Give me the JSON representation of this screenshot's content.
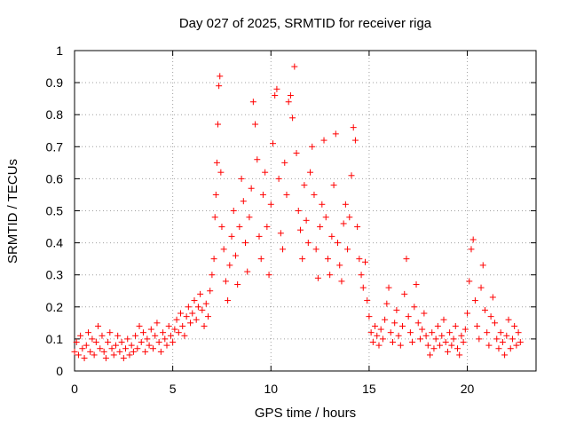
{
  "chart_data": {
    "type": "scatter",
    "title": "Day 027 of 2025, SRMTID for receiver riga",
    "xlabel": "GPS time / hours",
    "ylabel": "SRMTID / TECUs",
    "xlim": [
      0,
      23.5
    ],
    "ylim": [
      0,
      1
    ],
    "grid": true,
    "marker": "+",
    "color": "#ff0000",
    "x_ticks": [
      0,
      5,
      10,
      15,
      20
    ],
    "x_tick_labels": [
      "0",
      "5",
      "10",
      "15",
      "20"
    ],
    "y_ticks": [
      0,
      0.1,
      0.2,
      0.3,
      0.4,
      0.5,
      0.6,
      0.7,
      0.8,
      0.9,
      1
    ],
    "y_tick_labels": [
      "0",
      "0.1",
      "0.2",
      "0.3",
      "0.4",
      "0.5",
      "0.6",
      "0.7",
      "0.8",
      "0.9",
      "1"
    ],
    "series": [
      {
        "name": "SRMTID",
        "points": [
          [
            0.0,
            0.06
          ],
          [
            0.1,
            0.09
          ],
          [
            0.2,
            0.05
          ],
          [
            0.3,
            0.11
          ],
          [
            0.4,
            0.07
          ],
          [
            0.5,
            0.04
          ],
          [
            0.6,
            0.08
          ],
          [
            0.7,
            0.12
          ],
          [
            0.8,
            0.06
          ],
          [
            0.9,
            0.1
          ],
          [
            1.0,
            0.05
          ],
          [
            1.1,
            0.09
          ],
          [
            1.2,
            0.14
          ],
          [
            1.3,
            0.07
          ],
          [
            1.4,
            0.11
          ],
          [
            1.5,
            0.06
          ],
          [
            1.6,
            0.04
          ],
          [
            1.7,
            0.09
          ],
          [
            1.8,
            0.12
          ],
          [
            1.9,
            0.07
          ],
          [
            2.0,
            0.05
          ],
          [
            2.1,
            0.08
          ],
          [
            2.2,
            0.11
          ],
          [
            2.3,
            0.06
          ],
          [
            2.4,
            0.09
          ],
          [
            2.5,
            0.04
          ],
          [
            2.6,
            0.07
          ],
          [
            2.7,
            0.1
          ],
          [
            2.8,
            0.05
          ],
          [
            2.9,
            0.08
          ],
          [
            3.0,
            0.06
          ],
          [
            3.1,
            0.11
          ],
          [
            3.2,
            0.07
          ],
          [
            3.3,
            0.14
          ],
          [
            3.4,
            0.09
          ],
          [
            3.5,
            0.12
          ],
          [
            3.6,
            0.06
          ],
          [
            3.7,
            0.1
          ],
          [
            3.8,
            0.08
          ],
          [
            3.9,
            0.13
          ],
          [
            4.0,
            0.07
          ],
          [
            4.1,
            0.11
          ],
          [
            4.2,
            0.15
          ],
          [
            4.3,
            0.09
          ],
          [
            4.4,
            0.06
          ],
          [
            4.5,
            0.12
          ],
          [
            4.6,
            0.1
          ],
          [
            4.7,
            0.08
          ],
          [
            4.8,
            0.14
          ],
          [
            4.9,
            0.11
          ],
          [
            5.0,
            0.09
          ],
          [
            5.1,
            0.13
          ],
          [
            5.2,
            0.16
          ],
          [
            5.3,
            0.12
          ],
          [
            5.4,
            0.18
          ],
          [
            5.5,
            0.14
          ],
          [
            5.6,
            0.11
          ],
          [
            5.7,
            0.17
          ],
          [
            5.8,
            0.2
          ],
          [
            5.9,
            0.15
          ],
          [
            6.0,
            0.18
          ],
          [
            6.1,
            0.22
          ],
          [
            6.2,
            0.16
          ],
          [
            6.3,
            0.2
          ],
          [
            6.4,
            0.24
          ],
          [
            6.5,
            0.19
          ],
          [
            6.6,
            0.14
          ],
          [
            6.7,
            0.21
          ],
          [
            6.8,
            0.17
          ],
          [
            6.9,
            0.25
          ],
          [
            7.0,
            0.3
          ],
          [
            7.1,
            0.35
          ],
          [
            7.15,
            0.48
          ],
          [
            7.2,
            0.55
          ],
          [
            7.25,
            0.65
          ],
          [
            7.3,
            0.77
          ],
          [
            7.35,
            0.89
          ],
          [
            7.4,
            0.92
          ],
          [
            7.45,
            0.62
          ],
          [
            7.5,
            0.45
          ],
          [
            7.6,
            0.38
          ],
          [
            7.7,
            0.28
          ],
          [
            7.8,
            0.22
          ],
          [
            7.9,
            0.33
          ],
          [
            8.0,
            0.42
          ],
          [
            8.1,
            0.5
          ],
          [
            8.2,
            0.36
          ],
          [
            8.3,
            0.27
          ],
          [
            8.4,
            0.45
          ],
          [
            8.5,
            0.6
          ],
          [
            8.6,
            0.53
          ],
          [
            8.7,
            0.4
          ],
          [
            8.8,
            0.31
          ],
          [
            8.9,
            0.48
          ],
          [
            9.0,
            0.57
          ],
          [
            9.1,
            0.84
          ],
          [
            9.2,
            0.77
          ],
          [
            9.3,
            0.66
          ],
          [
            9.4,
            0.42
          ],
          [
            9.5,
            0.35
          ],
          [
            9.6,
            0.55
          ],
          [
            9.7,
            0.62
          ],
          [
            9.8,
            0.45
          ],
          [
            9.9,
            0.3
          ],
          [
            10.0,
            0.52
          ],
          [
            10.1,
            0.71
          ],
          [
            10.2,
            0.86
          ],
          [
            10.3,
            0.88
          ],
          [
            10.4,
            0.6
          ],
          [
            10.5,
            0.43
          ],
          [
            10.6,
            0.38
          ],
          [
            10.7,
            0.65
          ],
          [
            10.8,
            0.55
          ],
          [
            10.9,
            0.84
          ],
          [
            11.0,
            0.86
          ],
          [
            11.1,
            0.79
          ],
          [
            11.2,
            0.95
          ],
          [
            11.3,
            0.68
          ],
          [
            11.4,
            0.5
          ],
          [
            11.5,
            0.44
          ],
          [
            11.6,
            0.35
          ],
          [
            11.7,
            0.58
          ],
          [
            11.8,
            0.47
          ],
          [
            11.9,
            0.4
          ],
          [
            12.0,
            0.62
          ],
          [
            12.1,
            0.7
          ],
          [
            12.2,
            0.55
          ],
          [
            12.3,
            0.38
          ],
          [
            12.4,
            0.29
          ],
          [
            12.5,
            0.45
          ],
          [
            12.6,
            0.52
          ],
          [
            12.7,
            0.72
          ],
          [
            12.8,
            0.48
          ],
          [
            12.9,
            0.35
          ],
          [
            13.0,
            0.3
          ],
          [
            13.1,
            0.42
          ],
          [
            13.2,
            0.58
          ],
          [
            13.3,
            0.74
          ],
          [
            13.4,
            0.4
          ],
          [
            13.5,
            0.33
          ],
          [
            13.6,
            0.28
          ],
          [
            13.7,
            0.46
          ],
          [
            13.8,
            0.52
          ],
          [
            13.9,
            0.38
          ],
          [
            14.0,
            0.48
          ],
          [
            14.1,
            0.61
          ],
          [
            14.2,
            0.76
          ],
          [
            14.3,
            0.72
          ],
          [
            14.4,
            0.45
          ],
          [
            14.5,
            0.35
          ],
          [
            14.6,
            0.3
          ],
          [
            14.7,
            0.26
          ],
          [
            14.8,
            0.34
          ],
          [
            14.9,
            0.22
          ],
          [
            15.0,
            0.17
          ],
          [
            15.1,
            0.12
          ],
          [
            15.2,
            0.09
          ],
          [
            15.3,
            0.14
          ],
          [
            15.4,
            0.11
          ],
          [
            15.5,
            0.08
          ],
          [
            15.6,
            0.13
          ],
          [
            15.7,
            0.1
          ],
          [
            15.8,
            0.16
          ],
          [
            15.9,
            0.21
          ],
          [
            16.0,
            0.26
          ],
          [
            16.1,
            0.12
          ],
          [
            16.2,
            0.09
          ],
          [
            16.3,
            0.15
          ],
          [
            16.4,
            0.19
          ],
          [
            16.5,
            0.11
          ],
          [
            16.6,
            0.08
          ],
          [
            16.7,
            0.14
          ],
          [
            16.8,
            0.24
          ],
          [
            16.9,
            0.35
          ],
          [
            17.0,
            0.17
          ],
          [
            17.1,
            0.12
          ],
          [
            17.2,
            0.09
          ],
          [
            17.3,
            0.2
          ],
          [
            17.4,
            0.27
          ],
          [
            17.5,
            0.15
          ],
          [
            17.6,
            0.1
          ],
          [
            17.7,
            0.13
          ],
          [
            17.8,
            0.18
          ],
          [
            17.9,
            0.11
          ],
          [
            18.0,
            0.08
          ],
          [
            18.1,
            0.05
          ],
          [
            18.2,
            0.12
          ],
          [
            18.3,
            0.07
          ],
          [
            18.4,
            0.1
          ],
          [
            18.5,
            0.14
          ],
          [
            18.6,
            0.08
          ],
          [
            18.7,
            0.11
          ],
          [
            18.8,
            0.16
          ],
          [
            18.9,
            0.09
          ],
          [
            19.0,
            0.06
          ],
          [
            19.1,
            0.12
          ],
          [
            19.2,
            0.08
          ],
          [
            19.3,
            0.1
          ],
          [
            19.4,
            0.14
          ],
          [
            19.5,
            0.07
          ],
          [
            19.6,
            0.05
          ],
          [
            19.7,
            0.11
          ],
          [
            19.8,
            0.09
          ],
          [
            19.9,
            0.13
          ],
          [
            20.0,
            0.18
          ],
          [
            20.1,
            0.28
          ],
          [
            20.2,
            0.38
          ],
          [
            20.3,
            0.41
          ],
          [
            20.4,
            0.22
          ],
          [
            20.5,
            0.14
          ],
          [
            20.6,
            0.1
          ],
          [
            20.7,
            0.26
          ],
          [
            20.8,
            0.33
          ],
          [
            20.9,
            0.19
          ],
          [
            21.0,
            0.12
          ],
          [
            21.1,
            0.08
          ],
          [
            21.2,
            0.17
          ],
          [
            21.3,
            0.23
          ],
          [
            21.4,
            0.15
          ],
          [
            21.5,
            0.1
          ],
          [
            21.6,
            0.07
          ],
          [
            21.7,
            0.12
          ],
          [
            21.8,
            0.09
          ],
          [
            21.9,
            0.05
          ],
          [
            22.0,
            0.11
          ],
          [
            22.1,
            0.16
          ],
          [
            22.2,
            0.07
          ],
          [
            22.3,
            0.1
          ],
          [
            22.4,
            0.14
          ],
          [
            22.5,
            0.08
          ],
          [
            22.6,
            0.12
          ],
          [
            22.7,
            0.09
          ]
        ]
      }
    ]
  }
}
